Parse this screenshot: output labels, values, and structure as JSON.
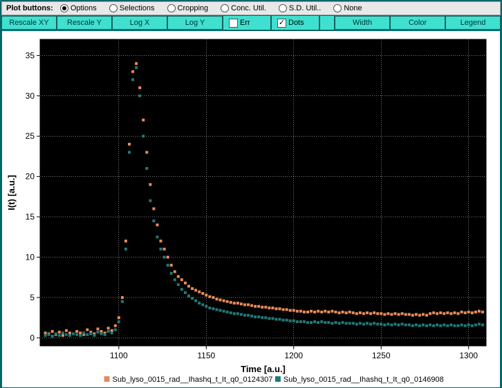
{
  "radios": {
    "label": "Plot buttons:",
    "items": [
      "Options",
      "Selections",
      "Cropping",
      "Conc. Util.",
      "S.D. Util..",
      "None"
    ],
    "selected": 0
  },
  "buttons": {
    "rescale_xy": "Rescale XY",
    "rescale_y": "Rescale Y",
    "log_x": "Log X",
    "log_y": "Log Y",
    "err": "Err",
    "dots": "Dots",
    "width": "Width",
    "color": "Color",
    "legend": "Legend"
  },
  "checkboxes": {
    "err": false,
    "dots": true
  },
  "chart": {
    "type": "scatter",
    "background_color": "#ffffff",
    "plot_background": "#000000",
    "grid_color": "#ffffff",
    "axis_color": "#000000",
    "xlabel": "Time [a.u.]",
    "ylabel": "I(t) [a.u.]",
    "label_fontsize": 13,
    "tick_fontsize": 12,
    "xlim": [
      1055,
      1310
    ],
    "ylim": [
      -1,
      37
    ],
    "xticks": [
      1100,
      1150,
      1200,
      1250,
      1300
    ],
    "yticks": [
      0,
      5,
      10,
      15,
      20,
      25,
      30,
      35
    ],
    "marker_size": 4,
    "series": [
      {
        "name": "Sub_lyso_0015_rad__Ihashq_t_It_q0_0124307",
        "color": "#e88a5a",
        "data": [
          [
            1058,
            0.6
          ],
          [
            1060,
            0.5
          ],
          [
            1062,
            0.8
          ],
          [
            1064,
            0.4
          ],
          [
            1066,
            0.7
          ],
          [
            1068,
            0.3
          ],
          [
            1070,
            0.9
          ],
          [
            1072,
            0.6
          ],
          [
            1074,
            0.5
          ],
          [
            1076,
            0.8
          ],
          [
            1078,
            0.6
          ],
          [
            1080,
            0.4
          ],
          [
            1082,
            1.0
          ],
          [
            1084,
            0.7
          ],
          [
            1086,
            0.5
          ],
          [
            1088,
            1.1
          ],
          [
            1090,
            0.8
          ],
          [
            1092,
            0.6
          ],
          [
            1094,
            1.2
          ],
          [
            1096,
            0.9
          ],
          [
            1098,
            1.5
          ],
          [
            1100,
            2.5
          ],
          [
            1102,
            5
          ],
          [
            1104,
            12
          ],
          [
            1106,
            24
          ],
          [
            1108,
            33
          ],
          [
            1110,
            34
          ],
          [
            1112,
            31
          ],
          [
            1114,
            27
          ],
          [
            1116,
            23
          ],
          [
            1118,
            19
          ],
          [
            1120,
            16
          ],
          [
            1122,
            14
          ],
          [
            1124,
            12
          ],
          [
            1126,
            11
          ],
          [
            1128,
            10
          ],
          [
            1130,
            9
          ],
          [
            1132,
            8.2
          ],
          [
            1134,
            7.6
          ],
          [
            1136,
            7.2
          ],
          [
            1138,
            6.8
          ],
          [
            1140,
            6.4
          ],
          [
            1142,
            6.1
          ],
          [
            1144,
            5.9
          ],
          [
            1146,
            5.7
          ],
          [
            1148,
            5.5
          ],
          [
            1150,
            5.3
          ],
          [
            1152,
            5.1
          ],
          [
            1154,
            5.0
          ],
          [
            1156,
            4.8
          ],
          [
            1158,
            4.7
          ],
          [
            1160,
            4.6
          ],
          [
            1162,
            4.5
          ],
          [
            1164,
            4.4
          ],
          [
            1166,
            4.3
          ],
          [
            1168,
            4.3
          ],
          [
            1170,
            4.2
          ],
          [
            1172,
            4.1
          ],
          [
            1174,
            4.1
          ],
          [
            1176,
            4.0
          ],
          [
            1178,
            3.9
          ],
          [
            1180,
            3.9
          ],
          [
            1182,
            3.8
          ],
          [
            1184,
            3.8
          ],
          [
            1186,
            3.7
          ],
          [
            1188,
            3.7
          ],
          [
            1190,
            3.6
          ],
          [
            1192,
            3.6
          ],
          [
            1194,
            3.5
          ],
          [
            1196,
            3.5
          ],
          [
            1198,
            3.4
          ],
          [
            1200,
            3.4
          ],
          [
            1202,
            3.3
          ],
          [
            1204,
            3.3
          ],
          [
            1206,
            3.2
          ],
          [
            1208,
            3.2
          ],
          [
            1210,
            3.3
          ],
          [
            1212,
            3.2
          ],
          [
            1214,
            3.3
          ],
          [
            1216,
            3.2
          ],
          [
            1218,
            3.3
          ],
          [
            1220,
            3.2
          ],
          [
            1222,
            3.3
          ],
          [
            1224,
            3.2
          ],
          [
            1226,
            3.1
          ],
          [
            1228,
            3.2
          ],
          [
            1230,
            3.1
          ],
          [
            1232,
            3.2
          ],
          [
            1234,
            3.1
          ],
          [
            1236,
            3.0
          ],
          [
            1238,
            3.1
          ],
          [
            1240,
            3.0
          ],
          [
            1242,
            3.1
          ],
          [
            1244,
            3.0
          ],
          [
            1246,
            3.1
          ],
          [
            1248,
            3.0
          ],
          [
            1250,
            3.0
          ],
          [
            1252,
            2.9
          ],
          [
            1254,
            3.0
          ],
          [
            1256,
            2.9
          ],
          [
            1258,
            3.0
          ],
          [
            1260,
            2.9
          ],
          [
            1262,
            3.0
          ],
          [
            1264,
            2.9
          ],
          [
            1266,
            2.9
          ],
          [
            1268,
            2.8
          ],
          [
            1270,
            2.9
          ],
          [
            1272,
            2.8
          ],
          [
            1274,
            2.9
          ],
          [
            1276,
            2.8
          ],
          [
            1278,
            3.0
          ],
          [
            1280,
            3.1
          ],
          [
            1282,
            3.0
          ],
          [
            1284,
            3.1
          ],
          [
            1286,
            3.0
          ],
          [
            1288,
            3.1
          ],
          [
            1290,
            3.0
          ],
          [
            1292,
            3.1
          ],
          [
            1294,
            3.0
          ],
          [
            1296,
            3.2
          ],
          [
            1298,
            3.1
          ],
          [
            1300,
            3.2
          ],
          [
            1302,
            3.1
          ],
          [
            1304,
            3.2
          ],
          [
            1306,
            3.3
          ],
          [
            1308,
            3.2
          ]
        ]
      },
      {
        "name": "Sub_lyso_0015_rad__Ihashq_t_It_q0_0146908",
        "color": "#1f7a7a",
        "data": [
          [
            1058,
            0.3
          ],
          [
            1060,
            0.4
          ],
          [
            1062,
            0.2
          ],
          [
            1064,
            0.5
          ],
          [
            1066,
            0.3
          ],
          [
            1068,
            0.6
          ],
          [
            1070,
            0.4
          ],
          [
            1072,
            0.3
          ],
          [
            1074,
            0.5
          ],
          [
            1076,
            0.4
          ],
          [
            1078,
            0.3
          ],
          [
            1080,
            0.6
          ],
          [
            1082,
            0.4
          ],
          [
            1084,
            0.5
          ],
          [
            1086,
            0.3
          ],
          [
            1088,
            0.7
          ],
          [
            1090,
            0.5
          ],
          [
            1092,
            0.4
          ],
          [
            1094,
            0.8
          ],
          [
            1096,
            0.6
          ],
          [
            1098,
            1.0
          ],
          [
            1100,
            2.0
          ],
          [
            1102,
            4.5
          ],
          [
            1104,
            11
          ],
          [
            1106,
            23
          ],
          [
            1108,
            32
          ],
          [
            1110,
            33.5
          ],
          [
            1112,
            30
          ],
          [
            1114,
            25
          ],
          [
            1116,
            21
          ],
          [
            1118,
            17
          ],
          [
            1120,
            14.5
          ],
          [
            1122,
            12.5
          ],
          [
            1124,
            11
          ],
          [
            1126,
            10
          ],
          [
            1128,
            9
          ],
          [
            1130,
            8
          ],
          [
            1132,
            7.2
          ],
          [
            1134,
            6.6
          ],
          [
            1136,
            6.0
          ],
          [
            1138,
            5.6
          ],
          [
            1140,
            5.2
          ],
          [
            1142,
            4.9
          ],
          [
            1144,
            4.6
          ],
          [
            1146,
            4.3
          ],
          [
            1148,
            4.1
          ],
          [
            1150,
            3.9
          ],
          [
            1152,
            3.7
          ],
          [
            1154,
            3.6
          ],
          [
            1156,
            3.5
          ],
          [
            1158,
            3.4
          ],
          [
            1160,
            3.3
          ],
          [
            1162,
            3.2
          ],
          [
            1164,
            3.1
          ],
          [
            1166,
            3.0
          ],
          [
            1168,
            3.0
          ],
          [
            1170,
            2.9
          ],
          [
            1172,
            2.8
          ],
          [
            1174,
            2.8
          ],
          [
            1176,
            2.7
          ],
          [
            1178,
            2.6
          ],
          [
            1180,
            2.6
          ],
          [
            1182,
            2.5
          ],
          [
            1184,
            2.5
          ],
          [
            1186,
            2.4
          ],
          [
            1188,
            2.4
          ],
          [
            1190,
            2.3
          ],
          [
            1192,
            2.3
          ],
          [
            1194,
            2.2
          ],
          [
            1196,
            2.2
          ],
          [
            1198,
            2.1
          ],
          [
            1200,
            2.1
          ],
          [
            1202,
            2.0
          ],
          [
            1204,
            2.0
          ],
          [
            1206,
            2.0
          ],
          [
            1208,
            1.9
          ],
          [
            1210,
            1.9
          ],
          [
            1212,
            2.0
          ],
          [
            1214,
            1.9
          ],
          [
            1216,
            2.0
          ],
          [
            1218,
            1.9
          ],
          [
            1220,
            1.9
          ],
          [
            1222,
            1.8
          ],
          [
            1224,
            1.9
          ],
          [
            1226,
            1.8
          ],
          [
            1228,
            1.9
          ],
          [
            1230,
            1.8
          ],
          [
            1232,
            1.8
          ],
          [
            1234,
            1.8
          ],
          [
            1236,
            1.7
          ],
          [
            1238,
            1.8
          ],
          [
            1240,
            1.7
          ],
          [
            1242,
            1.8
          ],
          [
            1244,
            1.7
          ],
          [
            1246,
            1.8
          ],
          [
            1248,
            1.7
          ],
          [
            1250,
            1.7
          ],
          [
            1252,
            1.6
          ],
          [
            1254,
            1.7
          ],
          [
            1256,
            1.6
          ],
          [
            1258,
            1.7
          ],
          [
            1260,
            1.6
          ],
          [
            1262,
            1.7
          ],
          [
            1264,
            1.6
          ],
          [
            1266,
            1.6
          ],
          [
            1268,
            1.5
          ],
          [
            1270,
            1.6
          ],
          [
            1272,
            1.5
          ],
          [
            1274,
            1.6
          ],
          [
            1276,
            1.5
          ],
          [
            1278,
            1.6
          ],
          [
            1280,
            1.5
          ],
          [
            1282,
            1.6
          ],
          [
            1284,
            1.5
          ],
          [
            1286,
            1.6
          ],
          [
            1288,
            1.5
          ],
          [
            1290,
            1.6
          ],
          [
            1292,
            1.5
          ],
          [
            1294,
            1.5
          ],
          [
            1296,
            1.6
          ],
          [
            1298,
            1.5
          ],
          [
            1300,
            1.6
          ],
          [
            1302,
            1.5
          ],
          [
            1304,
            1.6
          ],
          [
            1306,
            1.7
          ],
          [
            1308,
            1.6
          ]
        ]
      }
    ]
  }
}
